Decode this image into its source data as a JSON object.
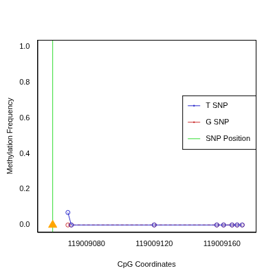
{
  "chart_data": {
    "type": "line",
    "x_label": "CpG Coordinates",
    "y_label": "Methylation Frequency",
    "xlim": [
      119009051,
      119009180
    ],
    "xticks": [
      119009080,
      119009120,
      119009160
    ],
    "ylim": [
      -0.04,
      1.04
    ],
    "yticks": [
      {
        "value": 0,
        "label": "0.0"
      },
      0.2,
      0.4,
      0.6,
      0.8,
      {
        "value": 1,
        "label": "1.0"
      }
    ],
    "grid": false,
    "legend": "right",
    "series": [
      {
        "name": "T SNP",
        "color": "#2b2bcc",
        "marker": "circle",
        "line_style": "solid",
        "x": [
          119009069,
          119009071,
          119009120,
          119009157,
          119009161,
          119009166,
          119009169,
          119009172
        ],
        "values": [
          0.07,
          0,
          0,
          0,
          0,
          0,
          0,
          0
        ]
      },
      {
        "name": "G SNP",
        "color": "#cc3333",
        "marker": "circle",
        "line_style": "dashed",
        "x": [
          119009069,
          119009071,
          119009120,
          119009157,
          119009161,
          119009166,
          119009169,
          119009172
        ],
        "values": [
          0,
          0,
          0,
          0,
          0,
          0,
          0,
          0
        ]
      },
      {
        "name": "SNP Position",
        "type": "vline",
        "color": "#33dd33",
        "x": [
          119009060
        ]
      },
      {
        "type": "scatter",
        "marker": "triangle",
        "color": "#ffa500",
        "x": [
          119009060
        ],
        "values": [
          0
        ]
      }
    ]
  }
}
